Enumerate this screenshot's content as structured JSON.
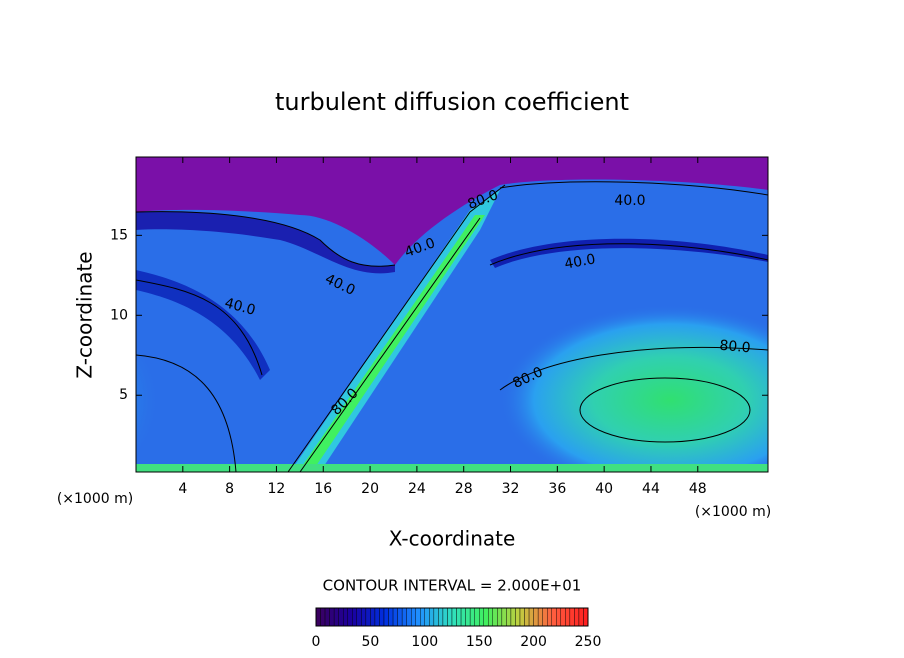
{
  "chart_data": {
    "type": "contour",
    "title": "turbulent diffusion coefficient",
    "x_label": "X-coordinate",
    "y_label": "Z-coordinate",
    "x_unit": "(×1000 m)",
    "xlim": [
      0,
      54
    ],
    "xticks": [
      4,
      8,
      12,
      16,
      20,
      24,
      28,
      32,
      36,
      40,
      44,
      48
    ],
    "ylim": [
      0.2,
      19.9
    ],
    "yticks": [
      5,
      10,
      15
    ],
    "contour_interval": "CONTOUR INTERVAL = 2.000E+01",
    "contour_labels": [
      {
        "value": 80,
        "label": "80.0"
      },
      {
        "value": 40,
        "label": "40.0"
      },
      {
        "value": 40,
        "label": "40.0"
      },
      {
        "value": 40,
        "label": "40.0"
      },
      {
        "value": 40,
        "label": "40.0"
      },
      {
        "value": 40,
        "label": "40.0"
      },
      {
        "value": 80,
        "label": "80.0"
      },
      {
        "value": 80,
        "label": "80.0"
      },
      {
        "value": 80,
        "label": "80.0"
      }
    ],
    "colorbar_lim": [
      0,
      250
    ],
    "colorbar_ticks": [
      0,
      50,
      100,
      150,
      200,
      250
    ],
    "colormap": [
      "#3a0060",
      "#1a00a0",
      "#0030e0",
      "#2090ff",
      "#30e0c0",
      "#40f060",
      "#c0d040",
      "#ff6040",
      "#ff2020"
    ]
  }
}
